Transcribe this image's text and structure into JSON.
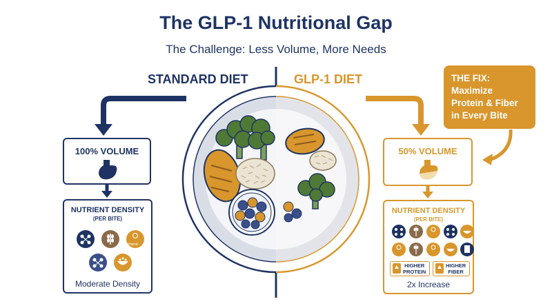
{
  "header": {
    "title": "The GLP-1 Nutritional Gap",
    "subtitle": "The Challenge: Less Volume, More Needs"
  },
  "columns": {
    "standard": {
      "heading": "STANDARD DIET",
      "volume_label": "100% VOLUME",
      "density_title": "NUTRIENT DENSITY",
      "density_sub": "(PER BITE)",
      "footer": "Moderate Density",
      "nutrient_icons": [
        "molecule-icon",
        "grain-icon",
        "vitamin-icon",
        "molecule-icon",
        "bowl-icon"
      ]
    },
    "glp1": {
      "heading": "GLP-1 DIET",
      "volume_label": "50% VOLUME",
      "density_title": "NUTRIENT DENSITY",
      "density_sub": "(PER BITE)",
      "footer": "2x Increase",
      "badges": [
        {
          "line1": "HIGHER",
          "line2": "PROTEIN"
        },
        {
          "line1": "HIGHER",
          "line2": "FIBER"
        }
      ],
      "nutrient_icons": [
        "molecule-icon",
        "grain-icon",
        "vitamin-icon",
        "molecule-icon",
        "bowl-icon",
        "vitamin-icon",
        "grain-icon",
        "vitamin-icon",
        "bowl-icon",
        "drink-icon"
      ]
    }
  },
  "vitamin_label": "Vitamin",
  "fix": {
    "line1": "THE FIX:",
    "line2": "Maximize",
    "line3": "Protein & Fiber",
    "line4": "in Every Bite"
  },
  "colors": {
    "navy": "#1e3363",
    "gold": "#d8962c",
    "brown": "#8a6a4a",
    "green": "#4f7a35",
    "plate": "#d9dde6"
  }
}
